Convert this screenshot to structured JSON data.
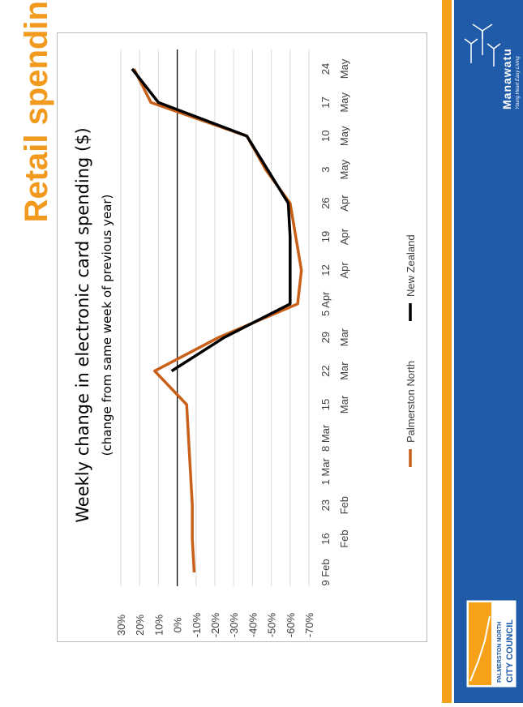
{
  "page_title": "Retail spending",
  "colors": {
    "brand_blue": "#1f5ba8",
    "accent_orange": "#f5a21a",
    "title_orange": "#f19a1d",
    "series_orange": "#c8601a",
    "series_black": "#000000"
  },
  "council_logo": {
    "line1": "PALMERSTON NORTH",
    "line2": "CITY COUNCIL",
    "icon": "council-logo-icon"
  },
  "manawatu_logo": {
    "name": "Manawatu",
    "tagline": "Young Heart Easy Living",
    "icon": "windmill-icon"
  },
  "chart_data": {
    "type": "line",
    "title": "Weekly change in electronic card spending ($)",
    "subtitle": "(change from same week of previous year)",
    "categories": [
      [
        "9 Feb"
      ],
      [
        "16",
        "Feb"
      ],
      [
        "23",
        "Feb"
      ],
      [
        "1 Mar"
      ],
      [
        "8 Mar"
      ],
      [
        "15",
        "Mar"
      ],
      [
        "22",
        "Mar"
      ],
      [
        "29",
        "Mar"
      ],
      [
        "5 Apr"
      ],
      [
        "12",
        "Apr"
      ],
      [
        "19",
        "Apr"
      ],
      [
        "26",
        "Apr"
      ],
      [
        "3",
        "May"
      ],
      [
        "10",
        "May"
      ],
      [
        "17",
        "May"
      ],
      [
        "24",
        "May"
      ]
    ],
    "yticks": [
      "30%",
      "20%",
      "10%",
      "0%",
      "-10%",
      "-20%",
      "-30%",
      "-40%",
      "-50%",
      "-60%",
      "-70%"
    ],
    "ylim": [
      -70,
      30
    ],
    "series": [
      {
        "name": "Palmerston North",
        "values": [
          null,
          null,
          null,
          -4,
          -5,
          -5,
          -4,
          -6,
          -7,
          null,
          null,
          -1,
          null,
          null,
          8,
          null
        ]
      },
      {
        "name": "New Zealand",
        "values": [
          null,
          null,
          null,
          null,
          null,
          null,
          null,
          null,
          null,
          null,
          null,
          null,
          null,
          null,
          null,
          null
        ]
      }
    ],
    "grid": true,
    "legend": "bottom"
  }
}
